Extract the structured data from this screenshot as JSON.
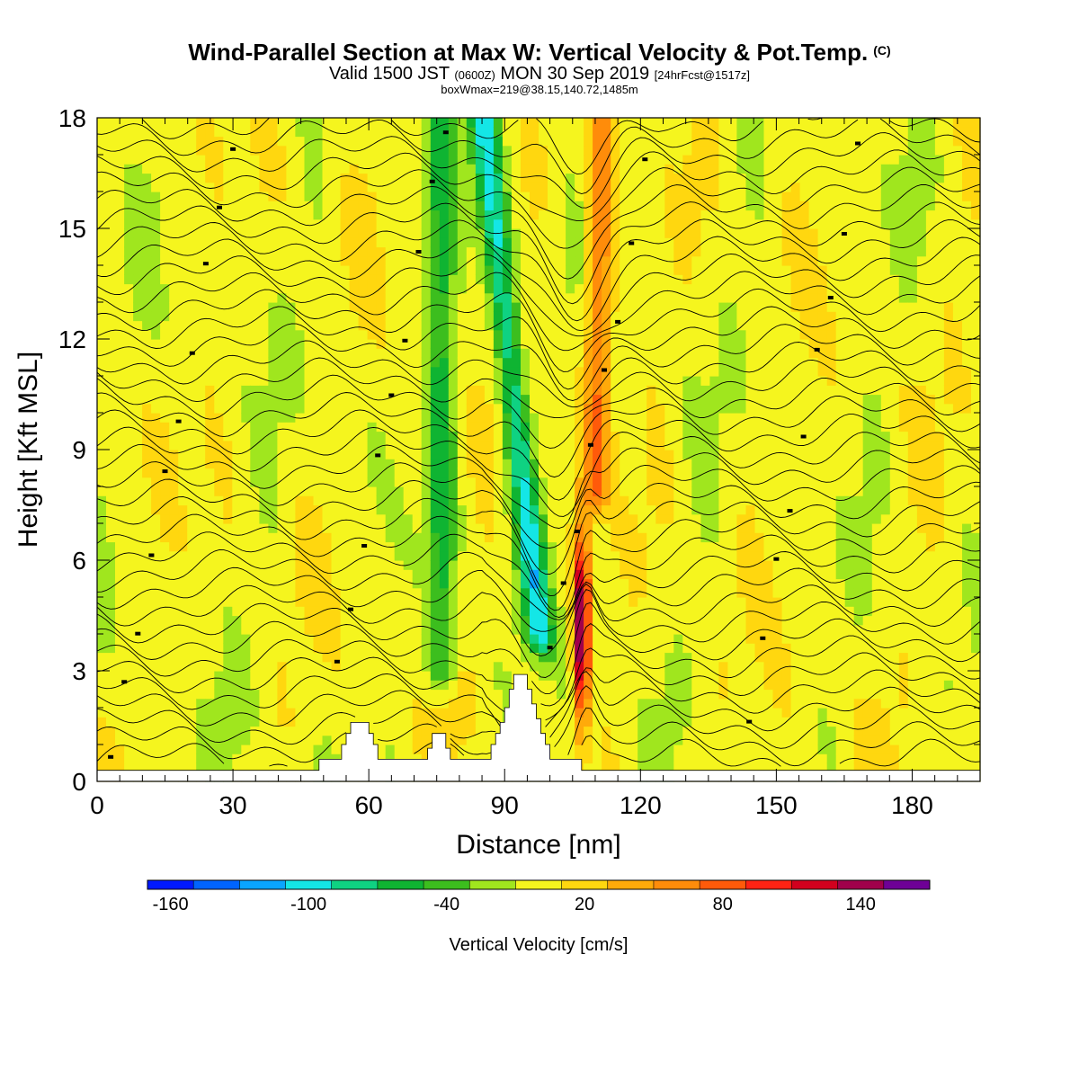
{
  "header": {
    "title": "Wind-Parallel Section at Max W: Vertical Velocity & Pot.Temp.",
    "copyright": "(C)",
    "valid_prefix": "Valid 1500 JST",
    "valid_utc": "(0600Z)",
    "valid_date": "MON 30 Sep 2019",
    "forecast": "[24hrFcst@1517z]",
    "box_info": "boxWmax=219@38.15,140.72,1485m"
  },
  "chart_data": {
    "type": "heatmap",
    "xlabel": "Distance [nm]",
    "ylabel": "Height [Kft MSL]",
    "xlim": [
      0,
      195
    ],
    "ylim": [
      0,
      18
    ],
    "x_ticks": [
      0,
      30,
      60,
      90,
      120,
      150,
      180
    ],
    "y_ticks": [
      0,
      3,
      6,
      9,
      12,
      15,
      18
    ],
    "colorbar": {
      "label": "Vertical Velocity [cm/s]",
      "range": [
        -170,
        170
      ],
      "tick_labels": [
        -160,
        -100,
        -40,
        20,
        80,
        140
      ],
      "colors": [
        "#0019ff",
        "#0064ff",
        "#0aa5ff",
        "#14e6e6",
        "#0fd282",
        "#0fb432",
        "#3cbe1e",
        "#a0e61e",
        "#f5f51e",
        "#ffd70f",
        "#ffaa0a",
        "#ff8c0a",
        "#ff5a0a",
        "#ff2314",
        "#d2001e",
        "#a0004b",
        "#6e0096"
      ]
    },
    "vertical_velocity_features": [
      {
        "x": 107,
        "ymin": 0.4,
        "ymax": 7.5,
        "peak": 160,
        "label": "strong updraft"
      },
      {
        "x": 96,
        "ymin": 4,
        "ymax": 18,
        "peak": -90,
        "label": "downdraft band"
      },
      {
        "x": 110,
        "ymin": 8,
        "ymax": 18,
        "peak": 70,
        "label": "upper updraft band"
      },
      {
        "x": 76,
        "ymin": 3,
        "ymax": 18,
        "peak": -55,
        "label": "downdraft band"
      }
    ],
    "terrain": [
      [
        0,
        0.3
      ],
      [
        48,
        0.3
      ],
      [
        49,
        0.6
      ],
      [
        53,
        0.6
      ],
      [
        54,
        1.0
      ],
      [
        55,
        1.3
      ],
      [
        56,
        1.6
      ],
      [
        59,
        1.6
      ],
      [
        60,
        1.3
      ],
      [
        61,
        1.0
      ],
      [
        62,
        0.6
      ],
      [
        72,
        0.6
      ],
      [
        73,
        0.9
      ],
      [
        74,
        1.3
      ],
      [
        76,
        1.3
      ],
      [
        77,
        0.9
      ],
      [
        78,
        0.6
      ],
      [
        86,
        0.6
      ],
      [
        87,
        1.0
      ],
      [
        88,
        1.3
      ],
      [
        89,
        1.6
      ],
      [
        90,
        2.0
      ],
      [
        91,
        2.5
      ],
      [
        92,
        2.9
      ],
      [
        94,
        2.9
      ],
      [
        95,
        2.5
      ],
      [
        96,
        2.1
      ],
      [
        97,
        1.7
      ],
      [
        98,
        1.3
      ],
      [
        99,
        1.0
      ],
      [
        100,
        0.6
      ],
      [
        106,
        0.6
      ],
      [
        107,
        0.3
      ],
      [
        195,
        0.3
      ]
    ],
    "theta_label_count": 38
  }
}
